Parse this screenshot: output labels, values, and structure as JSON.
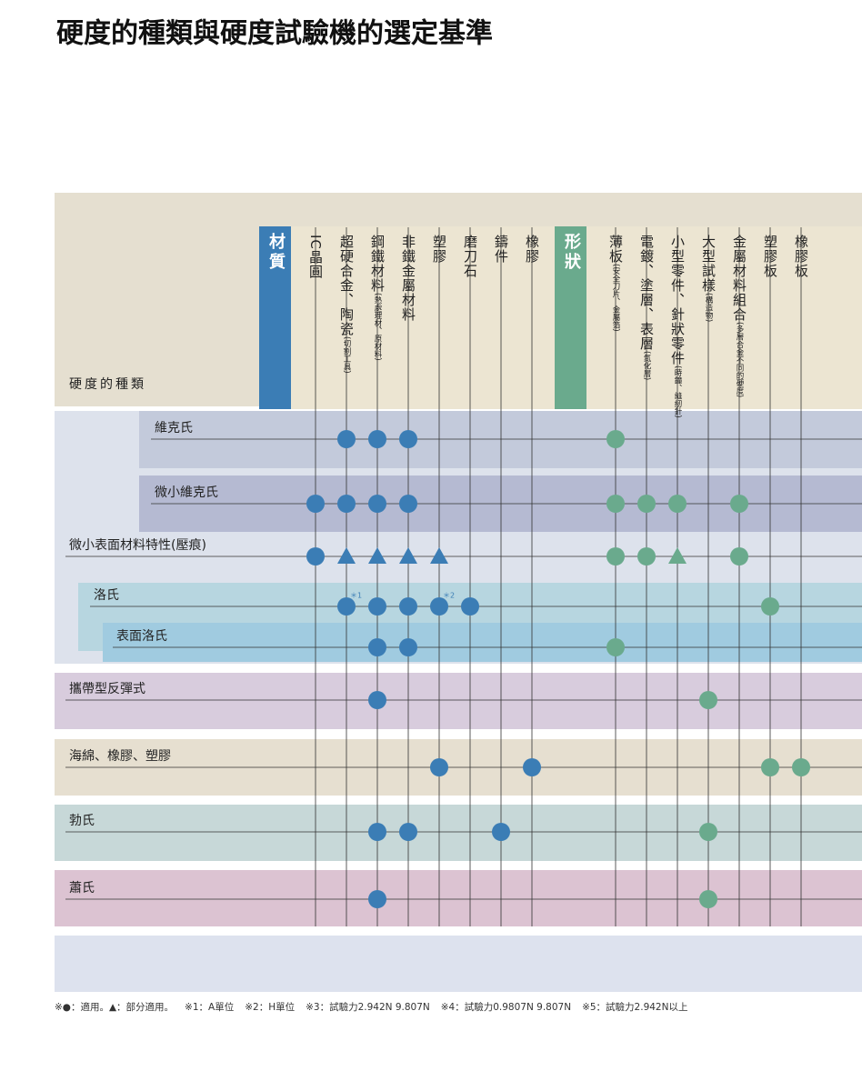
{
  "title": "硬度的種類與硬度試驗機的選定基準",
  "header": {
    "label": "硬度的種類"
  },
  "materials": {
    "label": "材質",
    "columns": [
      {
        "name": "IC晶圓"
      },
      {
        "name": "超硬合金、陶瓷",
        "note": "(切割工具)"
      },
      {
        "name": "鋼鐵材料",
        "note": "(熱處理材、原材料)"
      },
      {
        "name": "非鐵金屬材料"
      },
      {
        "name": "塑膠"
      },
      {
        "name": "磨刀石"
      },
      {
        "name": "鑄件"
      },
      {
        "name": "橡膠"
      }
    ]
  },
  "shapes": {
    "label": "形狀",
    "columns": [
      {
        "name": "薄板",
        "note": "(安全刀片、金屬箔)"
      },
      {
        "name": "電鍍、塗層、表層",
        "note": "(氮化層)"
      },
      {
        "name": "小型零件、針狀零件",
        "note": "(時鐘、縫紉針)"
      },
      {
        "name": "大型試樣",
        "note": "(構造物)"
      },
      {
        "name": "金屬材料組合",
        "note": "(多層合金不同的硬度)"
      },
      {
        "name": "塑膠板"
      },
      {
        "name": "橡膠板"
      }
    ]
  },
  "rows": [
    {
      "name": "維克氏",
      "materials": [
        null,
        "●",
        "●",
        "●",
        null,
        null,
        null,
        null
      ],
      "shapes": [
        "●",
        null,
        null,
        null,
        null,
        null,
        null
      ]
    },
    {
      "name": "微小維克氏",
      "materials": [
        "●",
        "●",
        "●",
        "●",
        null,
        null,
        null,
        null
      ],
      "shapes": [
        "●",
        "●",
        "●",
        null,
        "●",
        null,
        null
      ]
    },
    {
      "name": "微小表面材料特性(壓痕)",
      "materials": [
        "●",
        "▲",
        "▲",
        "▲",
        "▲",
        null,
        null,
        null
      ],
      "shapes": [
        "●",
        "●",
        "▲",
        null,
        "●",
        null,
        null
      ]
    },
    {
      "name": "洛氏",
      "materials": [
        null,
        "●",
        "●",
        "●",
        "●",
        "●",
        null,
        null
      ],
      "material_notes": [
        null,
        "＊1",
        null,
        null,
        "＊2",
        null,
        null,
        null
      ],
      "shapes": [
        null,
        null,
        null,
        null,
        null,
        "●",
        null
      ]
    },
    {
      "name": "表面洛氏",
      "materials": [
        null,
        null,
        "●",
        "●",
        null,
        null,
        null,
        null
      ],
      "shapes": [
        "●",
        null,
        null,
        null,
        null,
        null,
        null
      ]
    },
    {
      "name": "攜帶型反彈式",
      "materials": [
        null,
        null,
        "●",
        null,
        null,
        null,
        null,
        null
      ],
      "shapes": [
        null,
        null,
        null,
        "●",
        null,
        null,
        null
      ]
    },
    {
      "name": "海綿、橡膠、塑膠",
      "materials": [
        null,
        null,
        null,
        null,
        "●",
        null,
        null,
        "●"
      ],
      "shapes": [
        null,
        null,
        null,
        null,
        null,
        "●",
        "●"
      ]
    },
    {
      "name": "勃氏",
      "materials": [
        null,
        null,
        "●",
        "●",
        null,
        null,
        "●",
        null
      ],
      "shapes": [
        null,
        null,
        null,
        "●",
        null,
        null,
        null
      ]
    },
    {
      "name": "蕭氏",
      "materials": [
        null,
        null,
        "●",
        null,
        null,
        null,
        null,
        null
      ],
      "shapes": [
        null,
        null,
        null,
        "●",
        null,
        null,
        null
      ]
    }
  ],
  "footnotes": [
    "※●：適用。▲：部分適用。",
    "※1：A單位",
    "※2：H單位",
    "※3：試驗力2.942N 9.807N",
    "※4：試驗力0.9807N 9.807N",
    "※5：試驗力2.942N以上"
  ]
}
